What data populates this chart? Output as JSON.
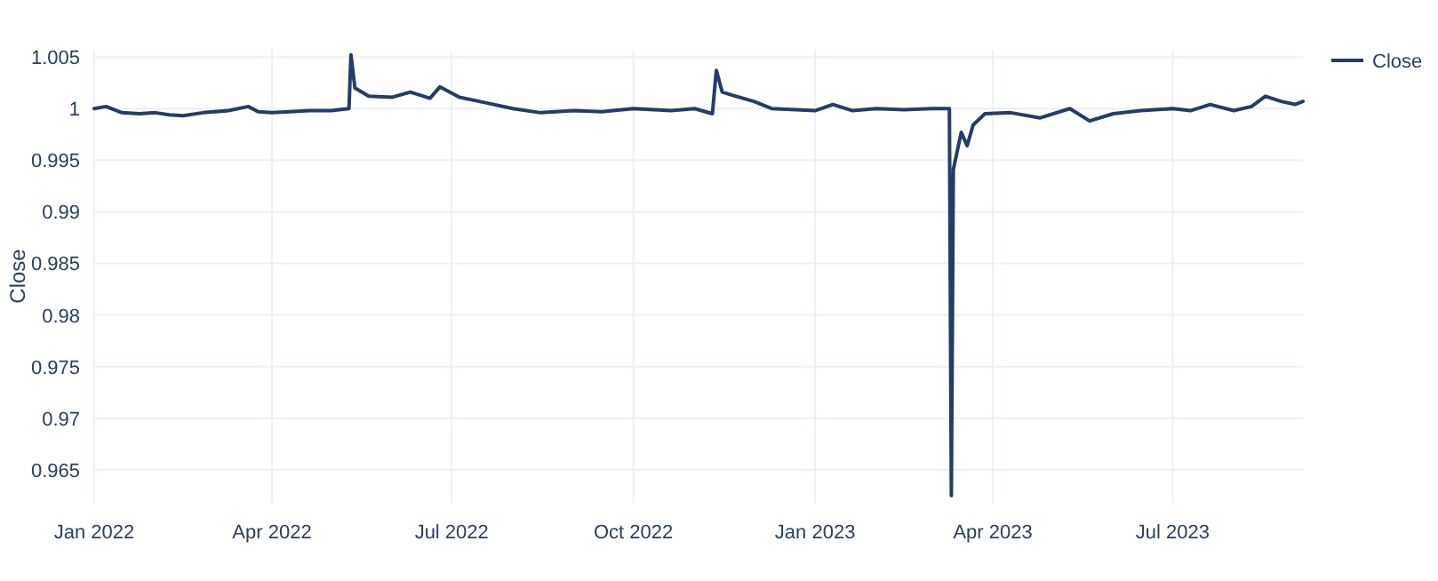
{
  "chart_data": {
    "type": "line",
    "ylabel": "Close",
    "xlim": [
      "2022-01-01",
      "2023-09-05"
    ],
    "ylim": [
      0.9618,
      1.0057
    ],
    "xticks": [
      {
        "value": "2022-01-01",
        "label": "Jan 2022"
      },
      {
        "value": "2022-04-01",
        "label": "Apr 2022"
      },
      {
        "value": "2022-07-01",
        "label": "Jul 2022"
      },
      {
        "value": "2022-10-01",
        "label": "Oct 2022"
      },
      {
        "value": "2023-01-01",
        "label": "Jan 2023"
      },
      {
        "value": "2023-04-01",
        "label": "Apr 2023"
      },
      {
        "value": "2023-07-01",
        "label": "Jul 2023"
      }
    ],
    "yticks": [
      0.965,
      0.97,
      0.975,
      0.98,
      0.985,
      0.99,
      0.995,
      1,
      1.005
    ],
    "grid": true,
    "legend": "top right",
    "series": [
      {
        "name": "Close",
        "color": "#253c6a",
        "x": [
          "2022-01-01",
          "2022-01-07",
          "2022-01-15",
          "2022-01-24",
          "2022-02-01",
          "2022-02-08",
          "2022-02-15",
          "2022-02-25",
          "2022-03-10",
          "2022-03-20",
          "2022-03-25",
          "2022-04-01",
          "2022-04-10",
          "2022-04-20",
          "2022-05-01",
          "2022-05-10",
          "2022-05-11",
          "2022-05-13",
          "2022-05-20",
          "2022-06-01",
          "2022-06-10",
          "2022-06-20",
          "2022-06-25",
          "2022-07-05",
          "2022-07-15",
          "2022-08-01",
          "2022-08-15",
          "2022-09-01",
          "2022-09-15",
          "2022-10-01",
          "2022-10-20",
          "2022-11-01",
          "2022-11-10",
          "2022-11-12",
          "2022-11-15",
          "2022-11-20",
          "2022-12-01",
          "2022-12-10",
          "2023-01-01",
          "2023-01-10",
          "2023-01-20",
          "2023-02-01",
          "2023-02-15",
          "2023-03-01",
          "2023-03-10",
          "2023-03-11",
          "2023-03-12",
          "2023-03-14",
          "2023-03-16",
          "2023-03-19",
          "2023-03-22",
          "2023-03-28",
          "2023-04-10",
          "2023-04-25",
          "2023-05-10",
          "2023-05-20",
          "2023-06-01",
          "2023-06-15",
          "2023-07-01",
          "2023-07-10",
          "2023-07-20",
          "2023-08-01",
          "2023-08-10",
          "2023-08-17",
          "2023-08-25",
          "2023-09-01",
          "2023-09-05"
        ],
        "values": [
          1.0,
          1.0002,
          0.9996,
          0.9995,
          0.9996,
          0.9994,
          0.9993,
          0.9996,
          0.9998,
          1.0002,
          0.9997,
          0.9996,
          0.9997,
          0.9998,
          0.9998,
          1.0,
          1.0052,
          1.002,
          1.0012,
          1.0011,
          1.0016,
          1.001,
          1.0021,
          1.0011,
          1.0007,
          1.0,
          0.9996,
          0.9998,
          0.9997,
          1.0,
          0.9998,
          1.0,
          0.9995,
          1.0037,
          1.0016,
          1.0013,
          1.0007,
          1.0,
          0.9998,
          1.0004,
          0.9998,
          1.0,
          0.9999,
          1.0,
          1.0,
          0.9625,
          0.9941,
          0.9959,
          0.9977,
          0.9964,
          0.9984,
          0.9995,
          0.9996,
          0.9991,
          1.0,
          0.9988,
          0.9995,
          0.9998,
          1.0,
          0.9998,
          1.0004,
          0.9998,
          1.0002,
          1.0012,
          1.0007,
          1.0004,
          1.0007
        ]
      }
    ]
  }
}
